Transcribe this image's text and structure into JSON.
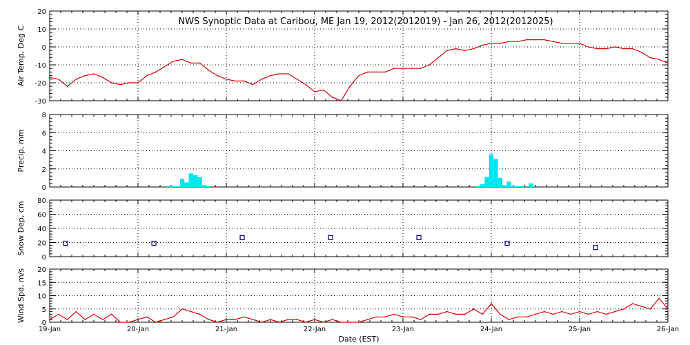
{
  "title": "NWS Synoptic Data at Caribou, ME   Jan 19, 2012(2012019) - Jan 26, 2012(2012025)",
  "colors": {
    "temp": "#d40000",
    "precip": "#00e5ee",
    "snow": "#00008b",
    "wind": "#d40000"
  },
  "chart_data": {
    "type": "line",
    "title": "NWS Synoptic Data at Caribou, ME   Jan 19, 2012(2012019) - Jan 26, 2012(2012025)",
    "xlabel": "Date (EST)",
    "x_ticks": [
      "19-Jan",
      "20-Jan",
      "21-Jan",
      "22-Jan",
      "23-Jan",
      "24-Jan",
      "25-Jan",
      "26-Jan"
    ],
    "xlim": [
      0,
      7
    ],
    "grid": true,
    "panels": [
      {
        "key": "temp",
        "type": "line",
        "ylabel": "Air Temp, Deg C",
        "ylim": [
          -30,
          20
        ],
        "yticks": [
          "20",
          "10",
          "0",
          "-10",
          "-20",
          "-30"
        ],
        "series": [
          {
            "x": [
              0,
              0.1,
              0.2,
              0.3,
              0.4,
              0.5,
              0.6,
              0.7,
              0.8,
              0.9,
              1.0,
              1.1,
              1.2,
              1.3,
              1.4,
              1.5,
              1.6,
              1.7,
              1.8,
              1.9,
              2.0,
              2.1,
              2.2,
              2.3,
              2.4,
              2.5,
              2.6,
              2.7,
              2.8,
              2.9,
              3.0,
              3.1,
              3.2,
              3.3,
              3.4,
              3.5,
              3.6,
              3.7,
              3.8,
              3.9,
              4.0,
              4.1,
              4.2,
              4.3,
              4.4,
              4.5,
              4.6,
              4.7,
              4.8,
              4.9,
              5.0,
              5.1,
              5.2,
              5.3,
              5.4,
              5.5,
              5.6,
              5.7,
              5.8,
              5.9,
              6.0,
              6.1,
              6.2,
              6.3,
              6.4,
              6.5,
              6.6,
              6.7,
              6.8,
              6.9,
              7.0
            ],
            "values": [
              -17,
              -18,
              -22,
              -18,
              -16,
              -15,
              -17,
              -20,
              -21,
              -20,
              -20,
              -16,
              -14,
              -11,
              -8,
              -7,
              -9,
              -9,
              -13,
              -16,
              -18,
              -19,
              -19,
              -21,
              -18,
              -16,
              -15,
              -15,
              -18,
              -21,
              -25,
              -24,
              -28,
              -30,
              -22,
              -16,
              -14,
              -14,
              -14,
              -12,
              -12,
              -12,
              -12,
              -10,
              -6,
              -2,
              -1,
              -2,
              -1,
              1,
              2,
              2,
              3,
              3,
              4,
              4,
              4,
              3,
              2,
              2,
              2,
              0,
              -1,
              -1,
              0,
              -1,
              -1,
              -3,
              -6,
              -7,
              -9
            ]
          }
        ]
      },
      {
        "key": "precip",
        "type": "bar",
        "ylabel": "Precip, mm",
        "ylim": [
          0,
          8
        ],
        "yticks": [
          "8",
          "6",
          "4",
          "2",
          "0"
        ],
        "series": [
          {
            "x": [
              1.35,
              1.4,
              1.45,
              1.5,
              1.55,
              1.6,
              1.65,
              1.7,
              1.75,
              1.8,
              4.85,
              4.9,
              4.95,
              5.0,
              5.05,
              5.1,
              5.15,
              5.2,
              5.25,
              5.3,
              5.35,
              5.45
            ],
            "values": [
              0.1,
              0.1,
              0.1,
              0.9,
              0.5,
              1.5,
              1.3,
              1.1,
              0.2,
              0.1,
              0.1,
              0.3,
              1.1,
              3.6,
              3.1,
              1.0,
              0.2,
              0.6,
              0.1,
              0.1,
              0.1,
              0.4
            ]
          }
        ]
      },
      {
        "key": "snow",
        "type": "scatter",
        "ylabel": "Snow Dep, cm",
        "ylim": [
          0,
          80
        ],
        "yticks": [
          "80",
          "60",
          "40",
          "20",
          "0"
        ],
        "series": [
          {
            "x": [
              0.18,
              1.18,
              2.18,
              3.18,
              4.18,
              5.18,
              6.18
            ],
            "values": [
              19,
              19,
              27,
              27,
              27,
              19,
              13
            ]
          }
        ]
      },
      {
        "key": "wind",
        "type": "line",
        "ylabel": "Wind Spd, m/s",
        "ylim": [
          0,
          20
        ],
        "yticks": [
          "20",
          "15",
          "10",
          "5",
          "0"
        ],
        "series": [
          {
            "x": [
              0,
              0.1,
              0.2,
              0.3,
              0.4,
              0.5,
              0.6,
              0.7,
              0.8,
              0.9,
              1.0,
              1.1,
              1.2,
              1.3,
              1.4,
              1.5,
              1.6,
              1.7,
              1.8,
              1.9,
              2.0,
              2.1,
              2.2,
              2.3,
              2.4,
              2.5,
              2.6,
              2.7,
              2.8,
              2.9,
              3.0,
              3.1,
              3.2,
              3.3,
              3.4,
              3.5,
              3.6,
              3.7,
              3.8,
              3.9,
              4.0,
              4.1,
              4.2,
              4.3,
              4.4,
              4.5,
              4.6,
              4.7,
              4.8,
              4.9,
              5.0,
              5.1,
              5.2,
              5.3,
              5.4,
              5.5,
              5.6,
              5.7,
              5.8,
              5.9,
              6.0,
              6.1,
              6.2,
              6.3,
              6.4,
              6.5,
              6.6,
              6.7,
              6.8,
              6.9,
              7.0
            ],
            "values": [
              1,
              3,
              1,
              4,
              1,
              3,
              1,
              3,
              0,
              0,
              1,
              2,
              0,
              1,
              2,
              5,
              4,
              3,
              1,
              0,
              1,
              1,
              2,
              1,
              0,
              1,
              0,
              1,
              1,
              0,
              1,
              0,
              1,
              0,
              0,
              0,
              1,
              2,
              2,
              3,
              2,
              2,
              1,
              3,
              3,
              4,
              3,
              3,
              5,
              3,
              7,
              3,
              1,
              2,
              2,
              3,
              4,
              3,
              4,
              3,
              4,
              3,
              4,
              3,
              4,
              5,
              7,
              6,
              5,
              9,
              5
            ]
          }
        ]
      }
    ]
  }
}
